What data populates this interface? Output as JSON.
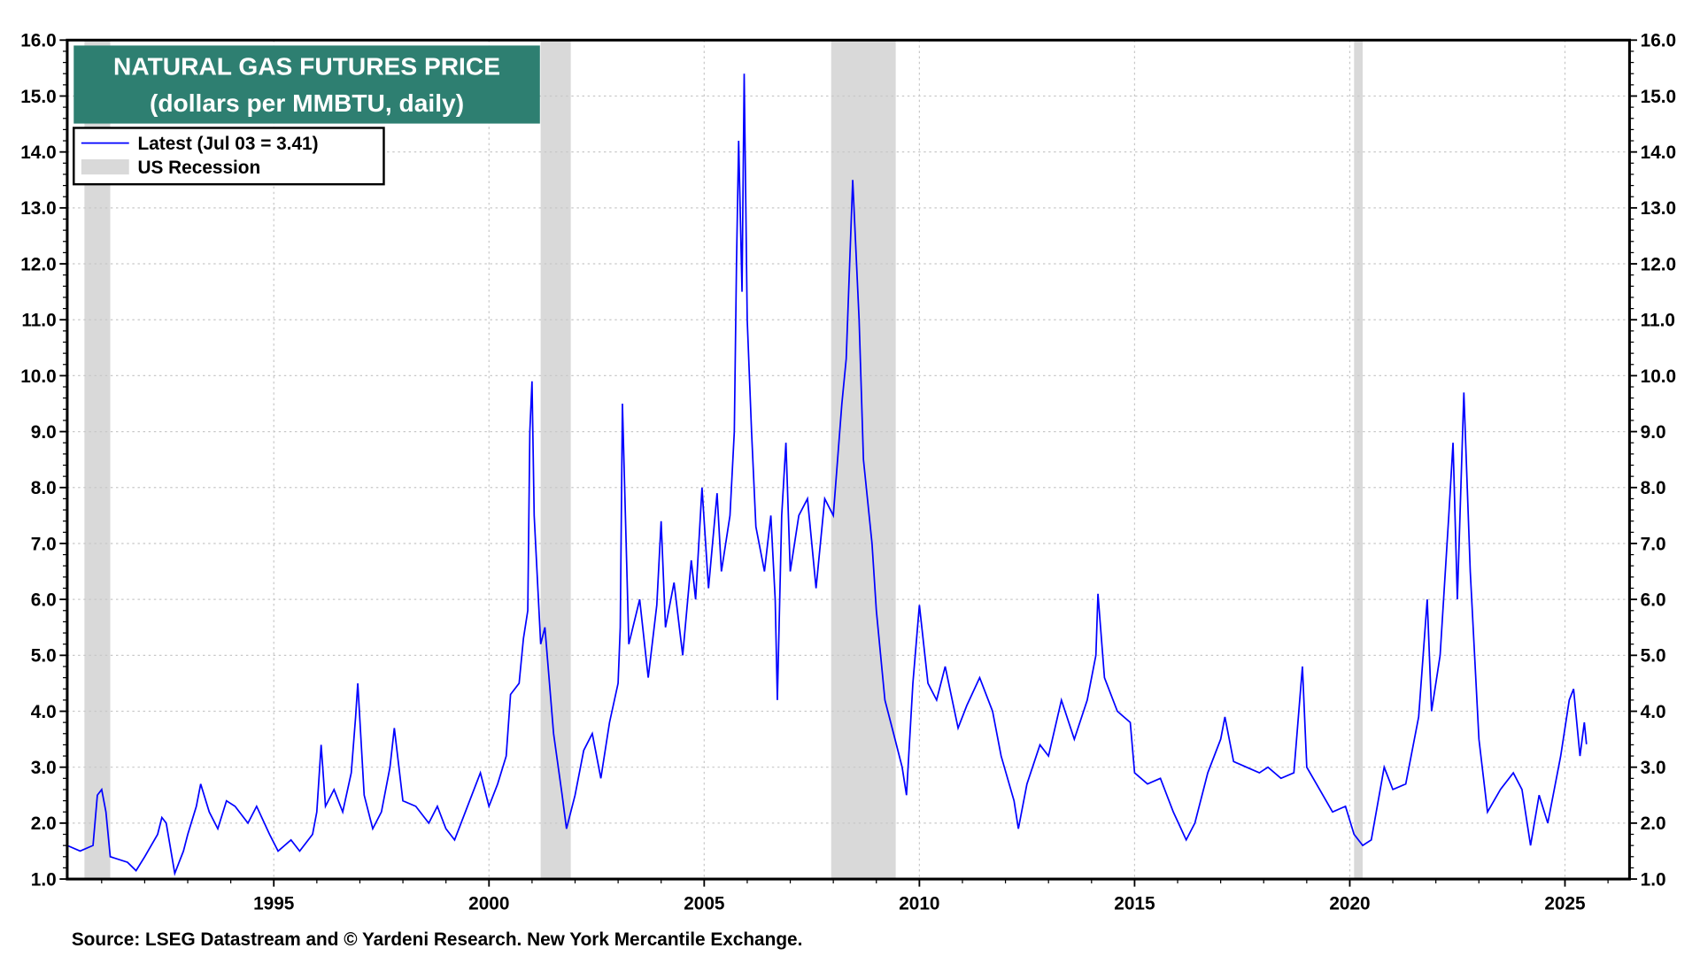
{
  "chart_data": {
    "type": "line",
    "title": "NATURAL GAS FUTURES PRICE",
    "subtitle": "(dollars per MMBTU, daily)",
    "source": "Source: LSEG Datastream and © Yardeni Research. New York Mercantile Exchange.",
    "ylim": [
      1.0,
      16.0
    ],
    "xlim": [
      1990.2,
      2026.5
    ],
    "y_ticks": [
      "1.0",
      "2.0",
      "3.0",
      "4.0",
      "5.0",
      "6.0",
      "7.0",
      "8.0",
      "9.0",
      "10.0",
      "11.0",
      "12.0",
      "13.0",
      "14.0",
      "15.0",
      "16.0"
    ],
    "x_ticks": [
      "1995",
      "2000",
      "2005",
      "2010",
      "2015",
      "2020",
      "2025"
    ],
    "grid": true,
    "legend_placement": "top-left",
    "legend": [
      {
        "label": "Latest (Jul 03 = 3.41)",
        "kind": "line",
        "color": "#0000ff"
      },
      {
        "label": "US Recession",
        "kind": "band",
        "color": "#d9d9d9"
      }
    ],
    "colors": {
      "series": "#0000ff",
      "recession": "#d9d9d9",
      "title_box": "#2e7f71"
    },
    "recessions": [
      [
        1990.6,
        1991.2
      ],
      [
        2001.2,
        2001.9
      ],
      [
        2007.95,
        2009.45
      ],
      [
        2020.1,
        2020.3
      ]
    ],
    "series": [
      {
        "name": "Latest (Jul 03 = 3.41)",
        "points": [
          [
            1990.2,
            1.6
          ],
          [
            1990.5,
            1.5
          ],
          [
            1990.8,
            1.6
          ],
          [
            1990.9,
            2.5
          ],
          [
            1991.0,
            2.6
          ],
          [
            1991.1,
            2.2
          ],
          [
            1991.2,
            1.4
          ],
          [
            1991.6,
            1.3
          ],
          [
            1991.8,
            1.15
          ],
          [
            1992.0,
            1.4
          ],
          [
            1992.3,
            1.8
          ],
          [
            1992.4,
            2.1
          ],
          [
            1992.5,
            2.0
          ],
          [
            1992.7,
            1.1
          ],
          [
            1992.9,
            1.5
          ],
          [
            1993.0,
            1.8
          ],
          [
            1993.2,
            2.3
          ],
          [
            1993.3,
            2.7
          ],
          [
            1993.5,
            2.2
          ],
          [
            1993.7,
            1.9
          ],
          [
            1993.9,
            2.4
          ],
          [
            1994.1,
            2.3
          ],
          [
            1994.4,
            2.0
          ],
          [
            1994.6,
            2.3
          ],
          [
            1994.9,
            1.8
          ],
          [
            1995.1,
            1.5
          ],
          [
            1995.4,
            1.7
          ],
          [
            1995.6,
            1.5
          ],
          [
            1995.9,
            1.8
          ],
          [
            1996.0,
            2.2
          ],
          [
            1996.1,
            3.4
          ],
          [
            1996.2,
            2.3
          ],
          [
            1996.4,
            2.6
          ],
          [
            1996.6,
            2.2
          ],
          [
            1996.8,
            2.9
          ],
          [
            1996.9,
            3.9
          ],
          [
            1996.95,
            4.5
          ],
          [
            1997.1,
            2.5
          ],
          [
            1997.3,
            1.9
          ],
          [
            1997.5,
            2.2
          ],
          [
            1997.7,
            3.0
          ],
          [
            1997.8,
            3.7
          ],
          [
            1998.0,
            2.4
          ],
          [
            1998.3,
            2.3
          ],
          [
            1998.6,
            2.0
          ],
          [
            1998.8,
            2.3
          ],
          [
            1999.0,
            1.9
          ],
          [
            1999.2,
            1.7
          ],
          [
            1999.5,
            2.3
          ],
          [
            1999.8,
            2.9
          ],
          [
            2000.0,
            2.3
          ],
          [
            2000.2,
            2.7
          ],
          [
            2000.4,
            3.2
          ],
          [
            2000.5,
            4.3
          ],
          [
            2000.7,
            4.5
          ],
          [
            2000.8,
            5.3
          ],
          [
            2000.9,
            5.8
          ],
          [
            2000.95,
            9.0
          ],
          [
            2001.0,
            9.9
          ],
          [
            2001.05,
            7.5
          ],
          [
            2001.2,
            5.2
          ],
          [
            2001.3,
            5.5
          ],
          [
            2001.5,
            3.6
          ],
          [
            2001.7,
            2.5
          ],
          [
            2001.8,
            1.9
          ],
          [
            2002.0,
            2.5
          ],
          [
            2002.2,
            3.3
          ],
          [
            2002.4,
            3.6
          ],
          [
            2002.6,
            2.8
          ],
          [
            2002.8,
            3.8
          ],
          [
            2003.0,
            4.5
          ],
          [
            2003.05,
            5.5
          ],
          [
            2003.1,
            9.5
          ],
          [
            2003.25,
            5.2
          ],
          [
            2003.5,
            6.0
          ],
          [
            2003.7,
            4.6
          ],
          [
            2003.9,
            5.9
          ],
          [
            2004.0,
            7.4
          ],
          [
            2004.1,
            5.5
          ],
          [
            2004.3,
            6.3
          ],
          [
            2004.5,
            5.0
          ],
          [
            2004.7,
            6.7
          ],
          [
            2004.8,
            6.0
          ],
          [
            2004.95,
            8.0
          ],
          [
            2005.1,
            6.2
          ],
          [
            2005.3,
            7.9
          ],
          [
            2005.4,
            6.5
          ],
          [
            2005.6,
            7.5
          ],
          [
            2005.7,
            9.0
          ],
          [
            2005.75,
            12.0
          ],
          [
            2005.8,
            14.2
          ],
          [
            2005.88,
            11.5
          ],
          [
            2005.93,
            15.4
          ],
          [
            2006.0,
            11.0
          ],
          [
            2006.1,
            9.0
          ],
          [
            2006.2,
            7.3
          ],
          [
            2006.4,
            6.5
          ],
          [
            2006.55,
            7.5
          ],
          [
            2006.65,
            6.0
          ],
          [
            2006.7,
            4.2
          ],
          [
            2006.8,
            7.5
          ],
          [
            2006.9,
            8.8
          ],
          [
            2007.0,
            6.5
          ],
          [
            2007.2,
            7.5
          ],
          [
            2007.4,
            7.8
          ],
          [
            2007.6,
            6.2
          ],
          [
            2007.8,
            7.8
          ],
          [
            2008.0,
            7.5
          ],
          [
            2008.2,
            9.5
          ],
          [
            2008.3,
            10.3
          ],
          [
            2008.45,
            13.5
          ],
          [
            2008.6,
            11.0
          ],
          [
            2008.7,
            8.5
          ],
          [
            2008.9,
            7.0
          ],
          [
            2009.0,
            5.8
          ],
          [
            2009.2,
            4.2
          ],
          [
            2009.4,
            3.6
          ],
          [
            2009.6,
            3.0
          ],
          [
            2009.7,
            2.5
          ],
          [
            2009.85,
            4.5
          ],
          [
            2010.0,
            5.9
          ],
          [
            2010.2,
            4.5
          ],
          [
            2010.4,
            4.2
          ],
          [
            2010.6,
            4.8
          ],
          [
            2010.9,
            3.7
          ],
          [
            2011.1,
            4.1
          ],
          [
            2011.4,
            4.6
          ],
          [
            2011.7,
            4.0
          ],
          [
            2011.9,
            3.2
          ],
          [
            2012.2,
            2.4
          ],
          [
            2012.3,
            1.9
          ],
          [
            2012.5,
            2.7
          ],
          [
            2012.8,
            3.4
          ],
          [
            2013.0,
            3.2
          ],
          [
            2013.3,
            4.2
          ],
          [
            2013.6,
            3.5
          ],
          [
            2013.9,
            4.2
          ],
          [
            2014.1,
            5.0
          ],
          [
            2014.15,
            6.1
          ],
          [
            2014.3,
            4.6
          ],
          [
            2014.6,
            4.0
          ],
          [
            2014.9,
            3.8
          ],
          [
            2015.0,
            2.9
          ],
          [
            2015.3,
            2.7
          ],
          [
            2015.6,
            2.8
          ],
          [
            2015.9,
            2.2
          ],
          [
            2016.2,
            1.7
          ],
          [
            2016.4,
            2.0
          ],
          [
            2016.7,
            2.9
          ],
          [
            2017.0,
            3.5
          ],
          [
            2017.1,
            3.9
          ],
          [
            2017.3,
            3.1
          ],
          [
            2017.6,
            3.0
          ],
          [
            2017.9,
            2.9
          ],
          [
            2018.1,
            3.0
          ],
          [
            2018.4,
            2.8
          ],
          [
            2018.7,
            2.9
          ],
          [
            2018.9,
            4.8
          ],
          [
            2019.0,
            3.0
          ],
          [
            2019.3,
            2.6
          ],
          [
            2019.6,
            2.2
          ],
          [
            2019.9,
            2.3
          ],
          [
            2020.1,
            1.8
          ],
          [
            2020.3,
            1.6
          ],
          [
            2020.5,
            1.7
          ],
          [
            2020.8,
            3.0
          ],
          [
            2021.0,
            2.6
          ],
          [
            2021.3,
            2.7
          ],
          [
            2021.6,
            3.9
          ],
          [
            2021.8,
            6.0
          ],
          [
            2021.9,
            4.0
          ],
          [
            2022.1,
            5.0
          ],
          [
            2022.3,
            7.5
          ],
          [
            2022.4,
            8.8
          ],
          [
            2022.5,
            6.0
          ],
          [
            2022.65,
            9.7
          ],
          [
            2022.8,
            6.5
          ],
          [
            2022.9,
            5.0
          ],
          [
            2023.0,
            3.5
          ],
          [
            2023.2,
            2.2
          ],
          [
            2023.5,
            2.6
          ],
          [
            2023.8,
            2.9
          ],
          [
            2024.0,
            2.6
          ],
          [
            2024.2,
            1.6
          ],
          [
            2024.4,
            2.5
          ],
          [
            2024.6,
            2.0
          ],
          [
            2024.9,
            3.2
          ],
          [
            2025.1,
            4.2
          ],
          [
            2025.2,
            4.4
          ],
          [
            2025.35,
            3.2
          ],
          [
            2025.45,
            3.8
          ],
          [
            2025.5,
            3.41
          ]
        ]
      }
    ]
  }
}
